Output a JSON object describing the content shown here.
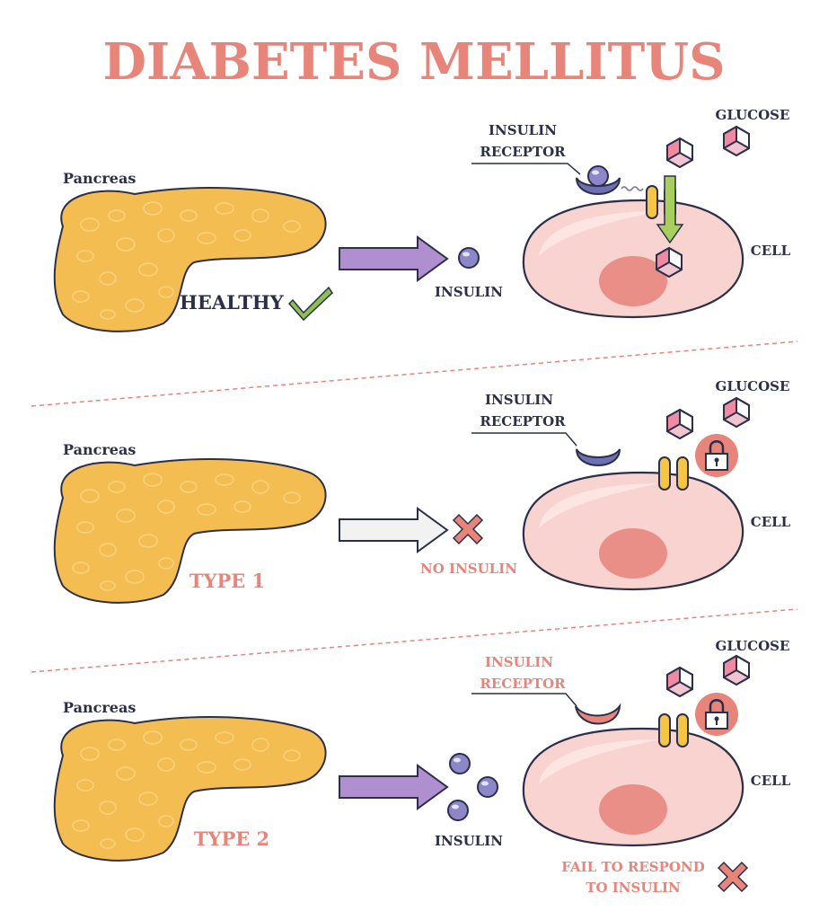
{
  "title": "DIABETES MELLITUS",
  "colors": {
    "title": "#e8857a",
    "pancreas": "#f4bd52",
    "cell": "#f9d3cf",
    "nucleus": "#ea8f88",
    "insulin": "#8d86c9",
    "receptor_healthy": "#6f6fb3",
    "receptor_type2": "#e8857a",
    "channel": "#f6c544",
    "green_arrow": "#a6cf5e",
    "purple_arrow": "#b08fd0",
    "check": "#8cc152",
    "cross": "#e8857a"
  },
  "panels": [
    {
      "pancreas_label": "Pancreas",
      "status_label": "HEALTHY",
      "status_icon": "check-icon",
      "insulin_label": "INSULIN",
      "receptor_label_1": "INSULIN",
      "receptor_label_2": "RECEPTOR",
      "glucose_label": "GLUCOSE",
      "cell_label": "CELL"
    },
    {
      "pancreas_label": "Pancreas",
      "status_label": "TYPE 1",
      "insulin_label": "NO INSULIN",
      "insulin_icon": "cross-icon",
      "receptor_label_1": "INSULIN",
      "receptor_label_2": "RECEPTOR",
      "glucose_label": "GLUCOSE",
      "cell_label": "CELL",
      "lock_icon": "lock-icon"
    },
    {
      "pancreas_label": "Pancreas",
      "status_label": "TYPE 2",
      "insulin_label": "INSULIN",
      "receptor_label_1": "INSULIN",
      "receptor_label_2": "RECEPTOR",
      "glucose_label": "GLUCOSE",
      "cell_label": "CELL",
      "lock_icon": "lock-icon",
      "fail_label_1": "FAIL TO RESPOND",
      "fail_label_2": "TO INSULIN"
    }
  ]
}
